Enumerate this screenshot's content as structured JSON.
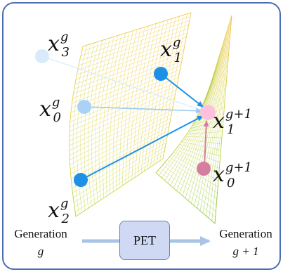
{
  "points": {
    "x3g": {
      "base": "x",
      "sub": "3",
      "sup": "g",
      "color": "#d9ebfb"
    },
    "x1g": {
      "base": "x",
      "sub": "1",
      "sup": "g",
      "color": "#1e90e6"
    },
    "x0g": {
      "base": "x",
      "sub": "0",
      "sup": "g",
      "color": "#a9d2f6"
    },
    "x2g": {
      "base": "x",
      "sub": "2",
      "sup": "g",
      "color": "#1e90e6"
    },
    "x1g1": {
      "base": "x",
      "sub": "1",
      "sup": "g+1",
      "color": "#ffc0de"
    },
    "x0g1": {
      "base": "x",
      "sub": "0",
      "sup": "g+1",
      "color": "#d67ea0"
    }
  },
  "left_generation": {
    "word": "Generation",
    "value": "g"
  },
  "right_generation": {
    "word": "Generation",
    "value": "g + 1"
  },
  "process_label": "PET",
  "colors": {
    "frame_border": "#4a6db5",
    "surface_yellow": "#f1d24a",
    "surface_green": "#9ccc3a",
    "arrow_blue": "#1e90e6",
    "arrow_pink": "#d67ea0",
    "process_arrow": "#a9c4e6"
  }
}
